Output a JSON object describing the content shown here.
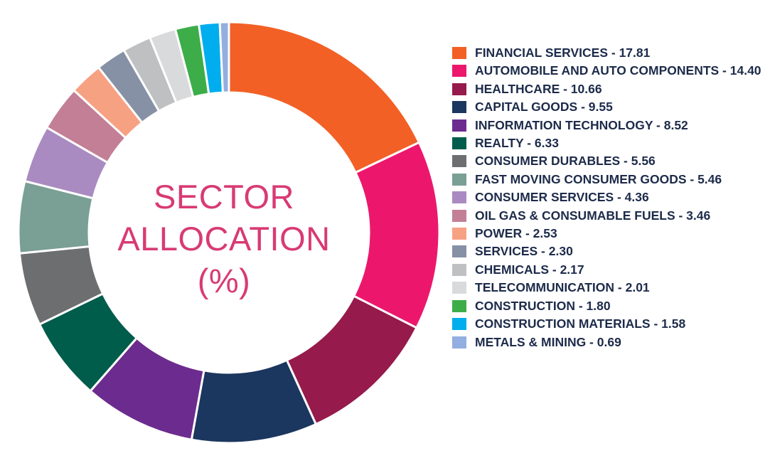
{
  "chart_data": {
    "type": "pie",
    "variant": "donut",
    "title": "SECTOR ALLOCATION (%)",
    "title_lines": [
      "SECTOR",
      "ALLOCATION",
      "(%)"
    ],
    "legend_position": "right",
    "slices": [
      {
        "label": "FINANCIAL SERVICES",
        "value": 17.81,
        "display": "FINANCIAL SERVICES - 17.81",
        "color": "#f26026"
      },
      {
        "label": "AUTOMOBILE AND AUTO COMPONENTS",
        "value": 14.4,
        "display": "AUTOMOBILE AND AUTO COMPONENTS - 14.40",
        "color": "#ec176c"
      },
      {
        "label": "HEALTHCARE",
        "value": 10.66,
        "display": "HEALTHCARE - 10.66",
        "color": "#961a4b"
      },
      {
        "label": "CAPITAL GOODS",
        "value": 9.55,
        "display": "CAPITAL GOODS - 9.55",
        "color": "#1b365f"
      },
      {
        "label": "INFORMATION TECHNOLOGY",
        "value": 8.52,
        "display": "INFORMATION TECHNOLOGY - 8.52",
        "color": "#6c2b8e"
      },
      {
        "label": "REALTY",
        "value": 6.33,
        "display": "REALTY - 6.33",
        "color": "#005c4b"
      },
      {
        "label": "CONSUMER DURABLES",
        "value": 5.56,
        "display": "CONSUMER DURABLES - 5.56",
        "color": "#6d6e70"
      },
      {
        "label": "FAST MOVING CONSUMER GOODS",
        "value": 5.46,
        "display": "FAST MOVING CONSUMER GOODS - 5.46",
        "color": "#7a9f95"
      },
      {
        "label": "CONSUMER SERVICES",
        "value": 4.36,
        "display": "CONSUMER SERVICES - 4.36",
        "color": "#a98bc1"
      },
      {
        "label": "OIL GAS & CONSUMABLE FUELS",
        "value": 3.46,
        "display": "OIL GAS & CONSUMABLE FUELS - 3.46",
        "color": "#c27f95"
      },
      {
        "label": "POWER",
        "value": 2.53,
        "display": "POWER - 2.53",
        "color": "#f7a183"
      },
      {
        "label": "SERVICES",
        "value": 2.3,
        "display": "SERVICES - 2.30",
        "color": "#8691a5"
      },
      {
        "label": "CHEMICALS",
        "value": 2.17,
        "display": "CHEMICALS - 2.17",
        "color": "#bfc0c2"
      },
      {
        "label": "TELECOMMUNICATION",
        "value": 2.01,
        "display": "TELECOMMUNICATION - 2.01",
        "color": "#d9dadc"
      },
      {
        "label": "CONSTRUCTION",
        "value": 1.8,
        "display": "CONSTRUCTION - 1.80",
        "color": "#3dad4a"
      },
      {
        "label": "CONSTRUCTION MATERIALS",
        "value": 1.58,
        "display": "CONSTRUCTION MATERIALS - 1.58",
        "color": "#00adee"
      },
      {
        "label": "METALS & MINING",
        "value": 0.69,
        "display": "METALS & MINING - 0.69",
        "color": "#93aee0"
      }
    ]
  }
}
